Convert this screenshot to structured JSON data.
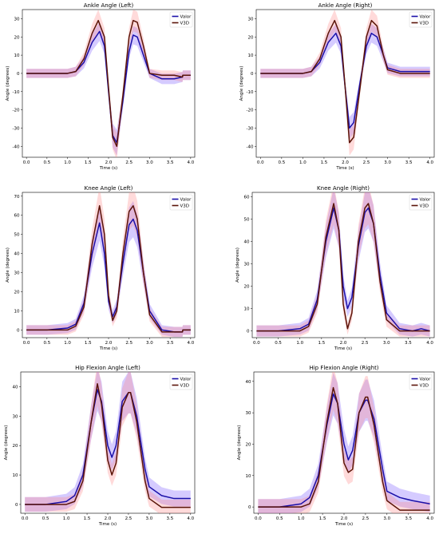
{
  "chart_data": [
    {
      "type": "line",
      "title": "Ankle Angle (Left)",
      "xlabel": "Time (s)",
      "ylabel": "Angle (degrees)",
      "xlim": [
        -0.1,
        4.1
      ],
      "ylim": [
        -46,
        35
      ],
      "xticks": [
        0.0,
        0.5,
        1.0,
        1.5,
        2.0,
        2.5,
        3.0,
        3.5,
        4.0
      ],
      "yticks": [
        -40,
        -30,
        -20,
        -10,
        0,
        10,
        20,
        30
      ],
      "legend_position": "top-right",
      "series": [
        {
          "name": "Valor",
          "color": "#1a0fa8",
          "band_color": "#7b5cff",
          "x": [
            0,
            0.5,
            1.0,
            1.2,
            1.4,
            1.6,
            1.78,
            1.9,
            2.0,
            2.1,
            2.2,
            2.35,
            2.5,
            2.6,
            2.7,
            2.85,
            3.0,
            3.3,
            3.6,
            3.8,
            3.81,
            4.0
          ],
          "y": [
            0,
            0,
            0,
            1,
            6,
            17,
            23,
            15,
            -10,
            -34,
            -38,
            -15,
            12,
            21,
            20,
            10,
            0,
            -3,
            -3,
            -2,
            -1,
            -1
          ]
        },
        {
          "name": "V3D",
          "color": "#5a1408",
          "band_color": "#ff8c8c",
          "x": [
            0,
            0.5,
            1.0,
            1.2,
            1.4,
            1.6,
            1.75,
            1.9,
            2.0,
            2.1,
            2.2,
            2.35,
            2.5,
            2.6,
            2.7,
            2.85,
            3.0,
            3.3,
            3.6,
            3.8,
            3.81,
            4.0
          ],
          "y": [
            0,
            0,
            0,
            1,
            8,
            22,
            29,
            20,
            -8,
            -35,
            -40,
            -12,
            20,
            29,
            28,
            15,
            0,
            -1,
            -1,
            -2,
            -1,
            -1
          ]
        }
      ]
    },
    {
      "type": "line",
      "title": "Ankle Angle (Right)",
      "xlabel": "Time (s)",
      "ylabel": "Angle (degrees)",
      "xlim": [
        -0.1,
        4.1
      ],
      "ylim": [
        -46,
        35
      ],
      "xticks": [
        0.0,
        0.5,
        1.0,
        1.5,
        2.0,
        2.5,
        3.0,
        3.5,
        4.0
      ],
      "yticks": [
        -40,
        -30,
        -20,
        -10,
        0,
        10,
        20,
        30
      ],
      "legend_position": "top-right",
      "series": [
        {
          "name": "Valor",
          "color": "#1a0fa8",
          "band_color": "#7b5cff",
          "x": [
            0,
            0.5,
            1.0,
            1.2,
            1.4,
            1.6,
            1.78,
            1.9,
            2.0,
            2.1,
            2.2,
            2.35,
            2.5,
            2.62,
            2.75,
            2.9,
            3.0,
            3.3,
            3.6,
            4.0
          ],
          "y": [
            0,
            0,
            0,
            1,
            6,
            17,
            22,
            15,
            -8,
            -30,
            -27,
            -5,
            15,
            22,
            20,
            10,
            3,
            1,
            1,
            1
          ]
        },
        {
          "name": "V3D",
          "color": "#5a1408",
          "band_color": "#ff8c8c",
          "x": [
            0,
            0.5,
            1.0,
            1.2,
            1.4,
            1.6,
            1.75,
            1.9,
            2.0,
            2.1,
            2.2,
            2.35,
            2.5,
            2.62,
            2.75,
            2.9,
            3.0,
            3.3,
            3.6,
            4.0
          ],
          "y": [
            0,
            0,
            0,
            1,
            8,
            22,
            29,
            20,
            -8,
            -38,
            -35,
            -8,
            20,
            29,
            26,
            10,
            2,
            0,
            0,
            0
          ]
        }
      ]
    },
    {
      "type": "line",
      "title": "Knee Angle (Left)",
      "xlabel": "Time (s)",
      "ylabel": "Angle (degrees)",
      "xlim": [
        -0.1,
        4.1
      ],
      "ylim": [
        -4,
        72
      ],
      "xticks": [
        0.0,
        0.5,
        1.0,
        1.5,
        2.0,
        2.5,
        3.0,
        3.5,
        4.0
      ],
      "yticks": [
        0,
        10,
        20,
        30,
        40,
        50,
        60,
        70
      ],
      "legend_position": "top-right",
      "series": [
        {
          "name": "Valor",
          "color": "#1a0fa8",
          "band_color": "#7b5cff",
          "x": [
            0,
            0.5,
            1.0,
            1.2,
            1.4,
            1.6,
            1.78,
            1.9,
            2.0,
            2.1,
            2.2,
            2.35,
            2.5,
            2.6,
            2.7,
            2.85,
            3.0,
            3.3,
            3.6,
            3.8,
            3.81,
            4.0
          ],
          "y": [
            0,
            0,
            1,
            3,
            14,
            40,
            56,
            40,
            15,
            7,
            12,
            35,
            55,
            58,
            52,
            30,
            10,
            0,
            -1,
            -1,
            0,
            0
          ]
        },
        {
          "name": "V3D",
          "color": "#5a1408",
          "band_color": "#ff8c8c",
          "x": [
            0,
            0.5,
            1.0,
            1.2,
            1.4,
            1.6,
            1.78,
            1.9,
            2.0,
            2.1,
            2.2,
            2.35,
            2.5,
            2.6,
            2.7,
            2.85,
            3.0,
            3.3,
            3.6,
            3.8,
            3.81,
            4.0
          ],
          "y": [
            0,
            0,
            0,
            2,
            12,
            45,
            65,
            50,
            18,
            5,
            10,
            40,
            62,
            65,
            58,
            30,
            8,
            -1,
            -1,
            -1,
            0,
            0
          ]
        }
      ]
    },
    {
      "type": "line",
      "title": "Knee Angle (Right)",
      "xlabel": "Time (s)",
      "ylabel": "Angle (degrees)",
      "xlim": [
        -0.1,
        4.1
      ],
      "ylim": [
        -3,
        62
      ],
      "xticks": [
        0.0,
        0.5,
        1.0,
        1.5,
        2.0,
        2.5,
        3.0,
        3.5,
        4.0
      ],
      "yticks": [
        0,
        10,
        20,
        30,
        40,
        50,
        60
      ],
      "legend_position": "top-right",
      "series": [
        {
          "name": "Valor",
          "color": "#1a0fa8",
          "band_color": "#7b5cff",
          "x": [
            0,
            0.5,
            1.0,
            1.2,
            1.4,
            1.6,
            1.78,
            1.9,
            2.0,
            2.1,
            2.2,
            2.35,
            2.5,
            2.58,
            2.7,
            2.85,
            3.0,
            3.3,
            3.6,
            3.8,
            4.0
          ],
          "y": [
            0,
            0,
            1,
            3,
            14,
            40,
            55,
            45,
            20,
            10,
            15,
            38,
            53,
            55,
            48,
            25,
            8,
            1,
            0,
            1,
            0
          ]
        },
        {
          "name": "V3D",
          "color": "#5a1408",
          "band_color": "#ff8c8c",
          "x": [
            0,
            0.5,
            1.0,
            1.2,
            1.4,
            1.6,
            1.78,
            1.9,
            2.0,
            2.1,
            2.2,
            2.35,
            2.5,
            2.58,
            2.7,
            2.85,
            3.0,
            3.3,
            3.6,
            3.8,
            4.0
          ],
          "y": [
            0,
            0,
            0,
            2,
            12,
            42,
            57,
            45,
            12,
            1,
            8,
            40,
            55,
            57,
            48,
            22,
            5,
            0,
            0,
            0,
            0
          ]
        }
      ]
    },
    {
      "type": "line",
      "title": "Hip Flexion Angle (Left)",
      "xlabel": "Time (s)",
      "ylabel": "Angle (degrees)",
      "xlim": [
        -0.1,
        4.1
      ],
      "ylim": [
        -3,
        45
      ],
      "xticks": [
        0.0,
        0.5,
        1.0,
        1.5,
        2.0,
        2.5,
        3.0,
        3.5,
        4.0
      ],
      "yticks": [
        0,
        10,
        20,
        30,
        40
      ],
      "legend_position": "top-right",
      "series": [
        {
          "name": "Valor",
          "color": "#1a0fa8",
          "band_color": "#7b5cff",
          "x": [
            0,
            0.5,
            1.0,
            1.2,
            1.4,
            1.6,
            1.75,
            1.85,
            2.0,
            2.1,
            2.2,
            2.35,
            2.5,
            2.55,
            2.7,
            2.9,
            3.0,
            3.3,
            3.6,
            4.0
          ],
          "y": [
            0,
            0,
            1,
            3,
            10,
            28,
            39,
            35,
            20,
            16,
            20,
            35,
            38,
            38,
            30,
            12,
            6,
            3,
            2,
            2
          ]
        },
        {
          "name": "V3D",
          "color": "#5a1408",
          "band_color": "#ff8c8c",
          "x": [
            0,
            0.5,
            1.0,
            1.2,
            1.4,
            1.6,
            1.75,
            1.85,
            2.0,
            2.1,
            2.2,
            2.35,
            2.5,
            2.55,
            2.7,
            2.9,
            3.0,
            3.3,
            3.6,
            4.0
          ],
          "y": [
            0,
            0,
            0,
            1,
            8,
            28,
            41,
            34,
            15,
            10,
            14,
            33,
            38,
            38,
            28,
            8,
            2,
            -1,
            -1,
            -1
          ]
        }
      ]
    },
    {
      "type": "line",
      "title": "Hip Flexion Angle (Right)",
      "xlabel": "Time (s)",
      "ylabel": "Angle (degrees)",
      "xlim": [
        -0.1,
        4.1
      ],
      "ylim": [
        -2,
        43
      ],
      "xticks": [
        0.0,
        0.5,
        1.0,
        1.5,
        2.0,
        2.5,
        3.0,
        3.5,
        4.0
      ],
      "yticks": [
        0,
        10,
        20,
        30,
        40
      ],
      "legend_position": "top-right",
      "series": [
        {
          "name": "Valor",
          "color": "#1a0fa8",
          "band_color": "#7b5cff",
          "x": [
            0,
            0.5,
            1.0,
            1.2,
            1.4,
            1.6,
            1.75,
            1.85,
            2.0,
            2.1,
            2.2,
            2.35,
            2.5,
            2.55,
            2.7,
            2.9,
            3.0,
            3.3,
            3.6,
            4.0
          ],
          "y": [
            0,
            0,
            1,
            3,
            10,
            26,
            36,
            33,
            20,
            15,
            18,
            30,
            34,
            34,
            28,
            12,
            5,
            3,
            2,
            1
          ]
        },
        {
          "name": "V3D",
          "color": "#5a1408",
          "band_color": "#ff8c8c",
          "x": [
            0,
            0.5,
            1.0,
            1.2,
            1.4,
            1.6,
            1.75,
            1.85,
            2.0,
            2.1,
            2.2,
            2.35,
            2.5,
            2.55,
            2.7,
            2.9,
            3.0,
            3.3,
            3.6,
            4.0
          ],
          "y": [
            0,
            0,
            0,
            1,
            8,
            27,
            38,
            33,
            14,
            11,
            12,
            30,
            35,
            35,
            26,
            8,
            2,
            -1,
            -1,
            -1
          ]
        }
      ]
    }
  ]
}
